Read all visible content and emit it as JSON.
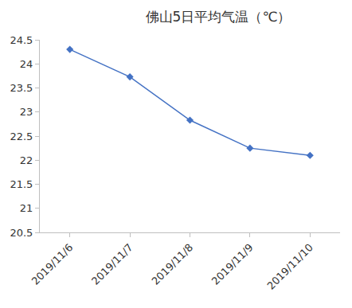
{
  "chart_data": {
    "type": "line",
    "title": "佛山5日平均气温（℃）",
    "categories": [
      "2019/11/6",
      "2019/11/7",
      "2019/11/8",
      "2019/11/9",
      "2019/11/10"
    ],
    "values": [
      24.3,
      23.73,
      22.83,
      22.25,
      22.1
    ],
    "color": "#4472c4",
    "marker": "diamond",
    "ylim": [
      20.5,
      24.5
    ],
    "yticks": [
      20.5,
      21,
      21.5,
      22,
      22.5,
      23,
      23.5,
      24,
      24.5
    ],
    "grid": false
  }
}
